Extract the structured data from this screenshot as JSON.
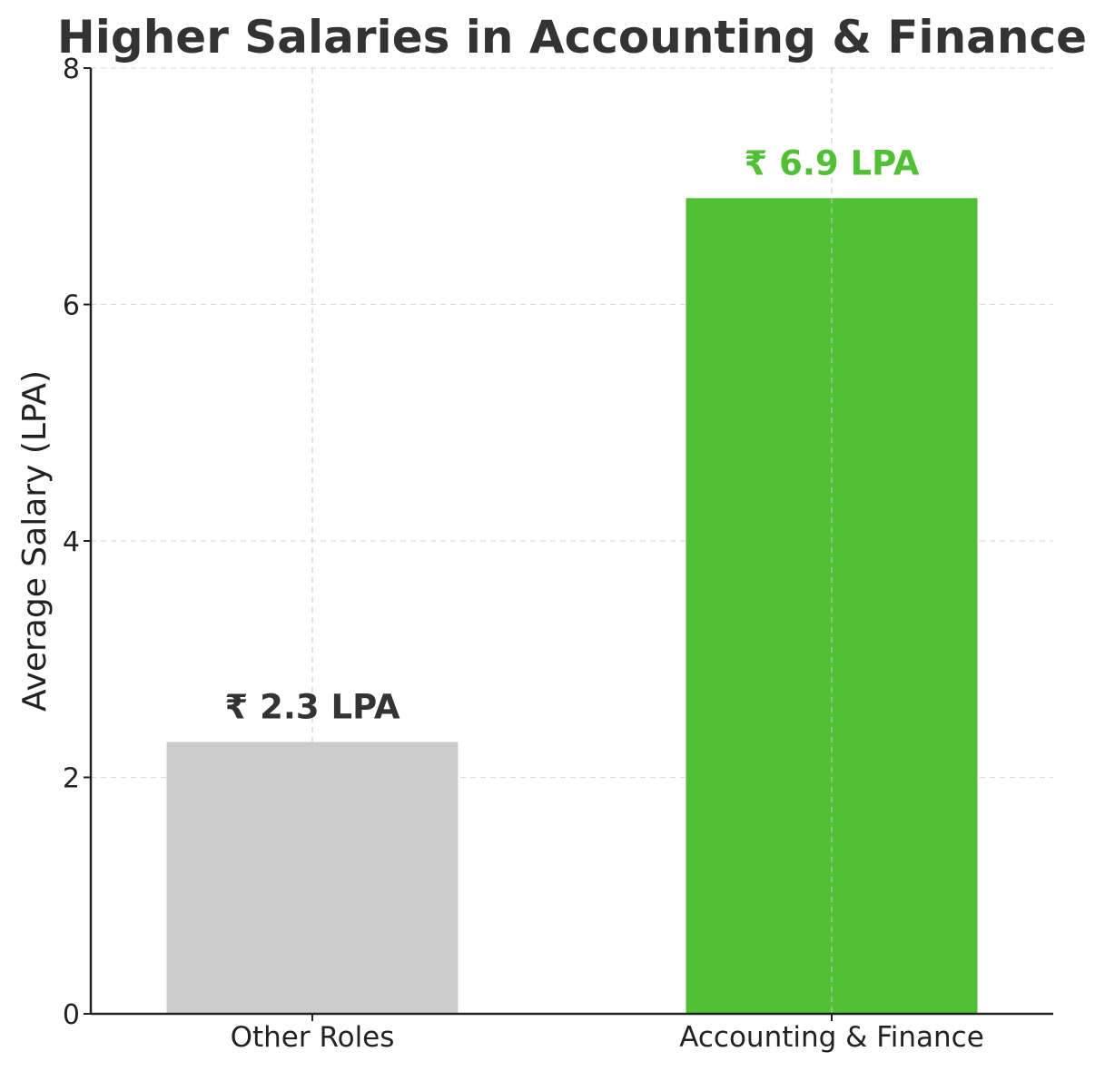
{
  "chart_data": {
    "type": "bar",
    "title": "Higher Salaries in Accounting & Finance",
    "xlabel": "",
    "ylabel": "Average Salary (LPA)",
    "categories": [
      "Other Roles",
      "Accounting & Finance"
    ],
    "values": [
      2.3,
      6.9
    ],
    "value_labels": [
      "₹ 2.3 LPA",
      "₹ 6.9 LPA"
    ],
    "bar_colors": [
      "#cccccc",
      "#52c034"
    ],
    "value_label_colors": [
      "#333333",
      "#52c034"
    ],
    "ylim": [
      0,
      8
    ],
    "yticks": [
      0,
      2,
      4,
      6,
      8
    ],
    "ytick_labels": [
      "0",
      "2",
      "4",
      "6",
      "8"
    ],
    "grid": true,
    "legend": "none"
  }
}
